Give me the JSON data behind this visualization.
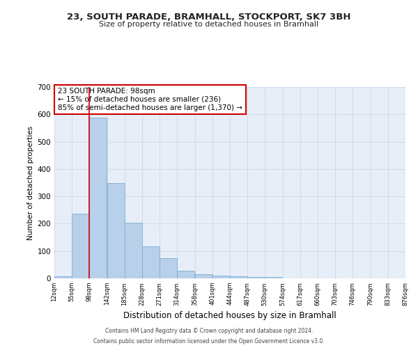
{
  "title_line1": "23, SOUTH PARADE, BRAMHALL, STOCKPORT, SK7 3BH",
  "title_line2": "Size of property relative to detached houses in Bramhall",
  "xlabel": "Distribution of detached houses by size in Bramhall",
  "ylabel": "Number of detached properties",
  "bin_labels": [
    "12sqm",
    "55sqm",
    "98sqm",
    "142sqm",
    "185sqm",
    "228sqm",
    "271sqm",
    "314sqm",
    "358sqm",
    "401sqm",
    "444sqm",
    "487sqm",
    "530sqm",
    "574sqm",
    "617sqm",
    "660sqm",
    "703sqm",
    "746sqm",
    "790sqm",
    "833sqm",
    "876sqm"
  ],
  "bin_edges": [
    12,
    55,
    98,
    142,
    185,
    228,
    271,
    314,
    358,
    401,
    444,
    487,
    530,
    574,
    617,
    660,
    703,
    746,
    790,
    833,
    876
  ],
  "bar_heights": [
    7,
    237,
    588,
    350,
    203,
    118,
    73,
    28,
    16,
    10,
    7,
    5,
    5,
    0,
    0,
    0,
    0,
    0,
    0,
    0
  ],
  "bar_color": "#b8d0ea",
  "bar_edge_color": "#7aafd4",
  "property_line_x": 98,
  "ylim": [
    0,
    700
  ],
  "yticks": [
    0,
    100,
    200,
    300,
    400,
    500,
    600,
    700
  ],
  "annotation_title": "23 SOUTH PARADE: 98sqm",
  "annotation_line1": "← 15% of detached houses are smaller (236)",
  "annotation_line2": "85% of semi-detached houses are larger (1,370) →",
  "annotation_box_color": "#ffffff",
  "annotation_box_edge": "#cc0000",
  "red_line_color": "#cc0000",
  "grid_color": "#d0daea",
  "bg_color": "#e8eef8",
  "fig_bg_color": "#ffffff",
  "footer_line1": "Contains HM Land Registry data © Crown copyright and database right 2024.",
  "footer_line2": "Contains public sector information licensed under the Open Government Licence v3.0."
}
